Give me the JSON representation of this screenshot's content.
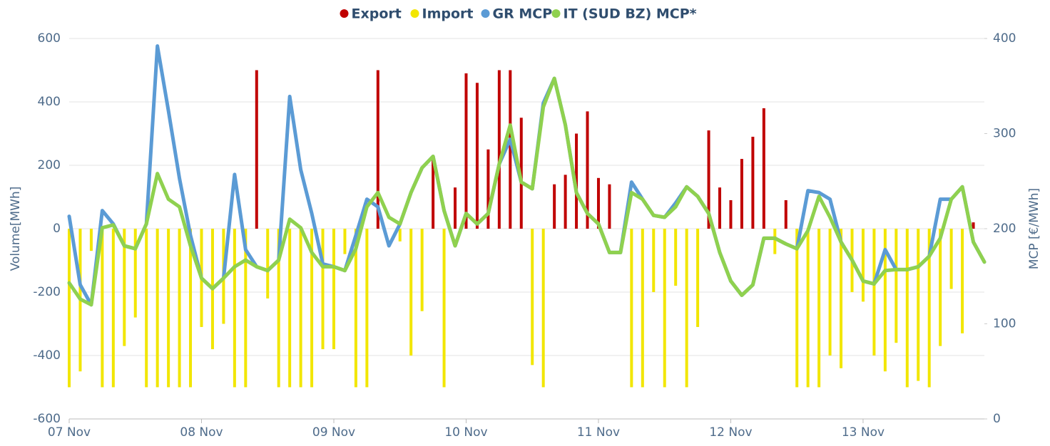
{
  "chart_data": {
    "type": "bar-line",
    "x": [
      0,
      2,
      4,
      6,
      8,
      10,
      12,
      14,
      16,
      18,
      20,
      22,
      24,
      26,
      28,
      30,
      32,
      34,
      36,
      38,
      40,
      42,
      44,
      46,
      48,
      50,
      52,
      54,
      56,
      58,
      60,
      62,
      64,
      66,
      68,
      70,
      72,
      74,
      76,
      78,
      80,
      82,
      84,
      86,
      88,
      90,
      92,
      94,
      96,
      98,
      100,
      102,
      104,
      106,
      108,
      110,
      112,
      114,
      116,
      118,
      120,
      122,
      124,
      126,
      128,
      130,
      132,
      134,
      136,
      138,
      140,
      142,
      144,
      146,
      148,
      150,
      152,
      154,
      156,
      158,
      160,
      162,
      164,
      166
    ],
    "xlim": [
      0,
      166
    ],
    "xticks": [
      {
        "value": 0,
        "label": "07 Nov"
      },
      {
        "value": 24,
        "label": "08 Nov"
      },
      {
        "value": 48,
        "label": "09 Nov"
      },
      {
        "value": 72,
        "label": "10 Nov"
      },
      {
        "value": 96,
        "label": "11 Nov"
      },
      {
        "value": 120,
        "label": "12 Nov"
      },
      {
        "value": 144,
        "label": "13 Nov"
      }
    ],
    "ylabel": "Volume[MWh]",
    "y2label": "MCP [€/MWh]",
    "ylim": [
      -600,
      600
    ],
    "yticks": [
      -600,
      -400,
      -200,
      0,
      200,
      400,
      600
    ],
    "y2lim": [
      0,
      400
    ],
    "y2ticks": [
      0,
      100,
      200,
      300,
      400
    ],
    "grid": true,
    "legend": "top",
    "series": [
      {
        "name": "Export",
        "color": "#c00000",
        "kind": "bar",
        "values": [
          0,
          0,
          0,
          0,
          0,
          0,
          0,
          0,
          0,
          0,
          0,
          0,
          0,
          0,
          0,
          0,
          0,
          500,
          0,
          0,
          0,
          0,
          0,
          0,
          0,
          0,
          0,
          0,
          500,
          0,
          0,
          0,
          0,
          230,
          0,
          130,
          490,
          460,
          250,
          500,
          500,
          350,
          0,
          0,
          140,
          170,
          300,
          370,
          160,
          140,
          0,
          0,
          0,
          0,
          0,
          0,
          0,
          0,
          310,
          130,
          90,
          220,
          290,
          380,
          0,
          90,
          0,
          0,
          0,
          0,
          0,
          0,
          0,
          0,
          0,
          0,
          0,
          0,
          0,
          0,
          0,
          0,
          20,
          0
        ]
      },
      {
        "name": "Import",
        "color": "#f2e600",
        "kind": "bar",
        "values": [
          -500,
          -450,
          -70,
          -500,
          -500,
          -370,
          -280,
          -500,
          -500,
          -500,
          -500,
          -500,
          -310,
          -380,
          -300,
          -500,
          -500,
          0,
          -220,
          -500,
          -500,
          -500,
          -500,
          -380,
          -380,
          -80,
          -500,
          -500,
          0,
          0,
          -40,
          -400,
          -260,
          0,
          -500,
          0,
          0,
          0,
          0,
          0,
          0,
          0,
          -430,
          -500,
          0,
          0,
          0,
          0,
          0,
          0,
          0,
          -500,
          -500,
          -200,
          -500,
          -180,
          -500,
          -310,
          0,
          0,
          0,
          0,
          0,
          0,
          -80,
          0,
          -500,
          -500,
          -500,
          -400,
          -440,
          -200,
          -230,
          -400,
          -450,
          -360,
          -500,
          -480,
          -500,
          -370,
          -190,
          -330,
          0,
          0
        ]
      },
      {
        "name": "GR MCP",
        "color": "#5b9bd5",
        "kind": "line",
        "axis": "y2",
        "values": [
          213,
          141,
          120,
          219,
          205,
          182,
          179,
          205,
          392,
          324,
          253,
          193,
          148,
          137,
          148,
          257,
          178,
          160,
          156,
          167,
          339,
          262,
          216,
          163,
          160,
          156,
          193,
          231,
          223,
          182,
          205,
          238,
          264,
          276,
          219,
          182,
          216,
          205,
          216,
          268,
          294,
          249,
          242,
          332,
          358,
          309,
          238,
          216,
          205,
          175,
          175,
          249,
          231,
          214,
          212,
          227,
          244,
          234,
          216,
          175,
          145,
          130,
          141,
          190,
          190,
          184,
          179,
          240,
          238,
          231,
          186,
          167,
          145,
          142,
          178,
          157,
          157,
          160,
          171,
          231,
          231,
          244,
          186,
          165
        ]
      },
      {
        "name": "IT (SUD BZ) MCP*",
        "color": "#8fd14f",
        "kind": "line",
        "axis": "y2",
        "values": [
          143,
          126,
          120,
          201,
          204,
          182,
          179,
          205,
          258,
          231,
          223,
          182,
          148,
          137,
          148,
          160,
          167,
          160,
          156,
          167,
          210,
          201,
          175,
          160,
          160,
          156,
          179,
          223,
          238,
          212,
          205,
          238,
          264,
          276,
          219,
          182,
          216,
          205,
          216,
          268,
          309,
          249,
          242,
          328,
          358,
          309,
          238,
          216,
          205,
          175,
          175,
          238,
          231,
          214,
          212,
          223,
          244,
          234,
          216,
          175,
          145,
          130,
          141,
          190,
          190,
          184,
          179,
          198,
          234,
          212,
          186,
          167,
          145,
          142,
          156,
          157,
          157,
          160,
          171,
          190,
          231,
          244,
          186,
          165
        ]
      }
    ]
  }
}
